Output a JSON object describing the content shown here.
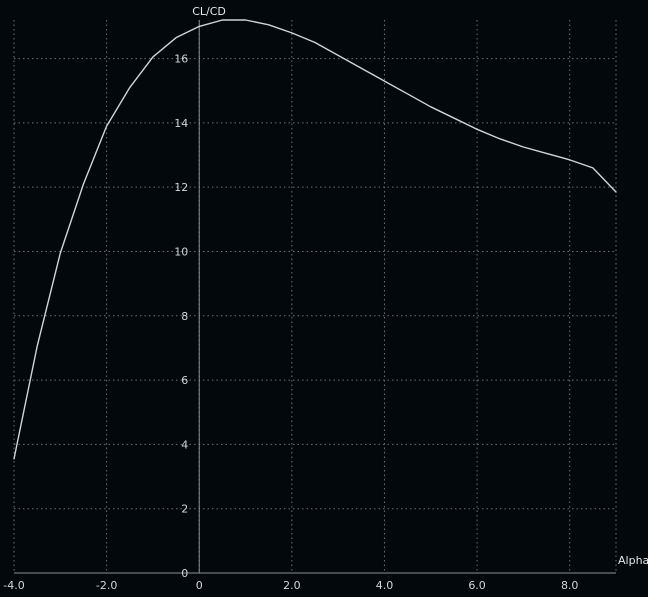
{
  "chart_data": {
    "type": "line",
    "xlabel": "Alpha",
    "ylabel": "CL/CD",
    "xlim": [
      -4,
      9
    ],
    "ylim": [
      0,
      17.2
    ],
    "grid": true,
    "x_ticks": [
      "-4.0",
      "-2.0",
      "0",
      "2.0",
      "4.0",
      "6.0",
      "8.0"
    ],
    "y_ticks": [
      "0",
      "2",
      "4",
      "6",
      "8",
      "10",
      "12",
      "14",
      "16"
    ],
    "series": [
      {
        "color": "#d0d4d6",
        "points": [
          [
            -4.0,
            3.55
          ],
          [
            -3.5,
            7.05
          ],
          [
            -3.0,
            9.95
          ],
          [
            -2.5,
            12.1
          ],
          [
            -2.0,
            13.9
          ],
          [
            -1.5,
            15.1
          ],
          [
            -1.0,
            16.05
          ],
          [
            -0.5,
            16.65
          ],
          [
            0.0,
            17.0
          ],
          [
            0.5,
            17.2
          ],
          [
            1.0,
            17.2
          ],
          [
            1.5,
            17.05
          ],
          [
            2.0,
            16.8
          ],
          [
            2.5,
            16.5
          ],
          [
            3.0,
            16.1
          ],
          [
            3.5,
            15.7
          ],
          [
            4.0,
            15.3
          ],
          [
            4.5,
            14.9
          ],
          [
            5.0,
            14.5
          ],
          [
            5.5,
            14.15
          ],
          [
            6.0,
            13.8
          ],
          [
            6.5,
            13.5
          ],
          [
            7.0,
            13.25
          ],
          [
            7.5,
            13.05
          ],
          [
            8.0,
            12.85
          ],
          [
            8.5,
            12.6
          ],
          [
            9.0,
            11.85
          ]
        ]
      }
    ],
    "colors": {
      "background": "#03080d",
      "grid": "#6b7075",
      "axis": "#8a8f94",
      "text": "#d2d6d8"
    }
  }
}
